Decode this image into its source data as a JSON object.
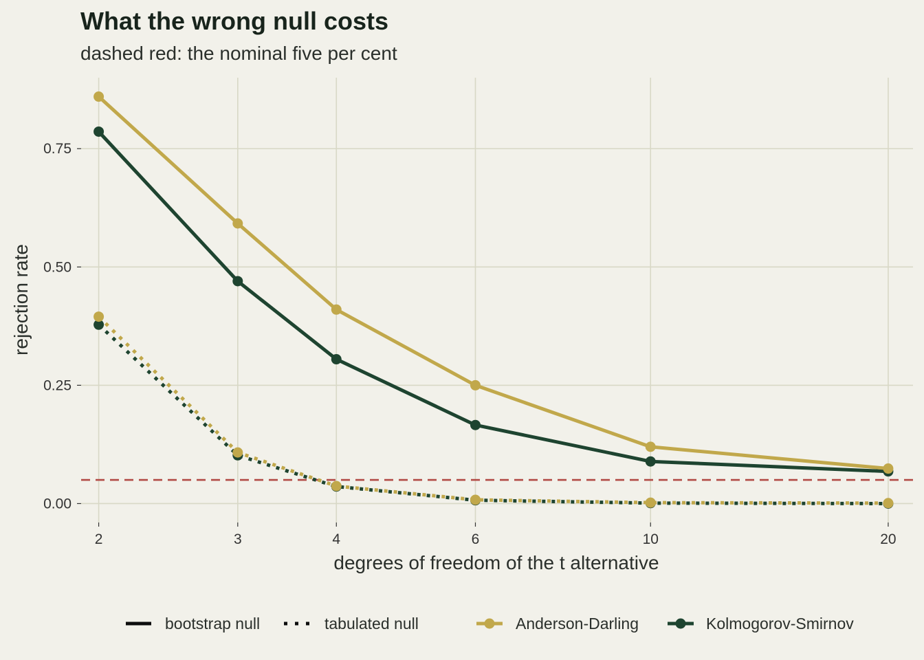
{
  "title": "What the wrong null costs",
  "subtitle": "dashed red: the nominal five per cent",
  "colors": {
    "background": "#f2f1ea",
    "grid": "#d8d8c6",
    "anderson_darling": "#c1a84b",
    "kolmogorov_smirnov": "#1e4430",
    "reference_line": "#b24a45",
    "text": "#2a2f2b"
  },
  "chart_data": {
    "type": "line",
    "xlabel": "degrees of freedom of the t alternative",
    "ylabel": "rejection rate",
    "x_scale": "log",
    "x": [
      2,
      3,
      4,
      6,
      10,
      20
    ],
    "x_tick_labels": [
      "2",
      "3",
      "4",
      "6",
      "10",
      "20"
    ],
    "y_ticks": [
      0,
      0.25,
      0.5,
      0.75
    ],
    "y_tick_labels": [
      "0.00",
      "0.25",
      "0.50",
      "0.75"
    ],
    "xlim": [
      1.9,
      21.5
    ],
    "ylim": [
      -0.04,
      0.9
    ],
    "grid": true,
    "reference_line": {
      "y": 0.05,
      "style": "dashed",
      "color": "#b24a45"
    },
    "series": [
      {
        "name": "Anderson-Darling",
        "null": "bootstrap null",
        "linetype": "solid",
        "color": "#c1a84b",
        "values": [
          0.86,
          0.592,
          0.41,
          0.25,
          0.12,
          0.074
        ]
      },
      {
        "name": "Kolmogorov-Smirnov",
        "null": "bootstrap null",
        "linetype": "solid",
        "color": "#1e4430",
        "values": [
          0.786,
          0.47,
          0.305,
          0.166,
          0.089,
          0.068
        ]
      },
      {
        "name": "Anderson-Darling",
        "null": "tabulated null",
        "linetype": "dotted",
        "color": "#c1a84b",
        "values": [
          0.395,
          0.108,
          0.037,
          0.008,
          0.002,
          0.001
        ]
      },
      {
        "name": "Kolmogorov-Smirnov",
        "null": "tabulated null",
        "linetype": "dotted",
        "color": "#1e4430",
        "values": [
          0.378,
          0.102,
          0.036,
          0.007,
          0.001,
          0.0
        ]
      }
    ],
    "legend": {
      "position": "bottom",
      "linetype_items": [
        {
          "label": "bootstrap null",
          "linetype": "solid"
        },
        {
          "label": "tabulated null",
          "linetype": "dotted"
        }
      ],
      "test_items": [
        {
          "label": "Anderson-Darling",
          "color": "#c1a84b"
        },
        {
          "label": "Kolmogorov-Smirnov",
          "color": "#1e4430"
        }
      ]
    }
  }
}
